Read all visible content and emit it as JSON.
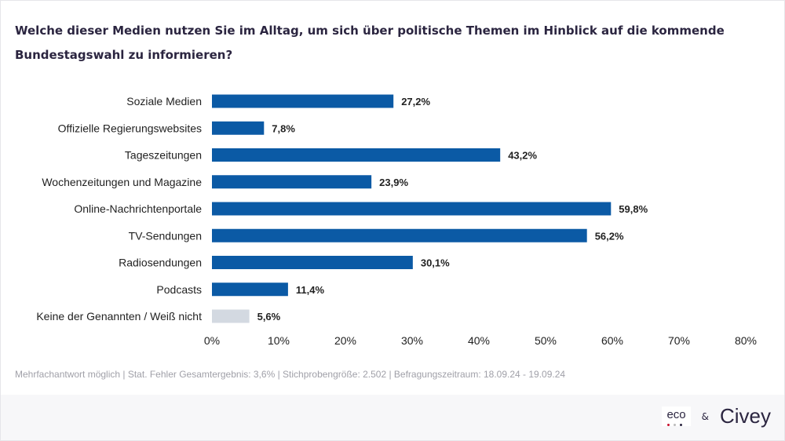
{
  "title": "Welche dieser Medien nutzen Sie im Alltag, um sich über politische Themen im Hinblick auf die kommende Bundestagswahl zu informieren?",
  "chart_data": {
    "type": "bar",
    "orientation": "horizontal",
    "categories": [
      "Soziale Medien",
      "Offizielle Regierungswebsites",
      "Tageszeitungen",
      "Wochenzeitungen und Magazine",
      "Online-Nachrichtenportale",
      "TV-Sendungen",
      "Radiosendungen",
      "Podcasts",
      "Keine der Genannten / Weiß nicht"
    ],
    "values": [
      27.2,
      7.8,
      43.2,
      23.9,
      59.8,
      56.2,
      30.1,
      11.4,
      5.6
    ],
    "value_labels": [
      "27,2%",
      "7,8%",
      "43,2%",
      "23,9%",
      "59,8%",
      "56,2%",
      "30,1%",
      "11,4%",
      "5,6%"
    ],
    "colors": [
      "#0b5aa5",
      "#0b5aa5",
      "#0b5aa5",
      "#0b5aa5",
      "#0b5aa5",
      "#0b5aa5",
      "#0b5aa5",
      "#0b5aa5",
      "#d3d9e1"
    ],
    "xlim": [
      0,
      80
    ],
    "xticks": [
      0,
      10,
      20,
      30,
      40,
      50,
      60,
      70,
      80
    ],
    "xtick_labels": [
      "0%",
      "10%",
      "20%",
      "30%",
      "40%",
      "50%",
      "60%",
      "70%",
      "80%"
    ],
    "xlabel": "",
    "ylabel": "",
    "grid": false
  },
  "note": "Mehrfachantwort möglich | Stat. Fehler Gesamtergebnis: 3,6% | Stichprobengröße: 2.502 | Befragungszeitraum: 18.09.24 - 19.09.24",
  "logos": {
    "eco": "eco",
    "amp": "&",
    "civey": "Civey"
  }
}
